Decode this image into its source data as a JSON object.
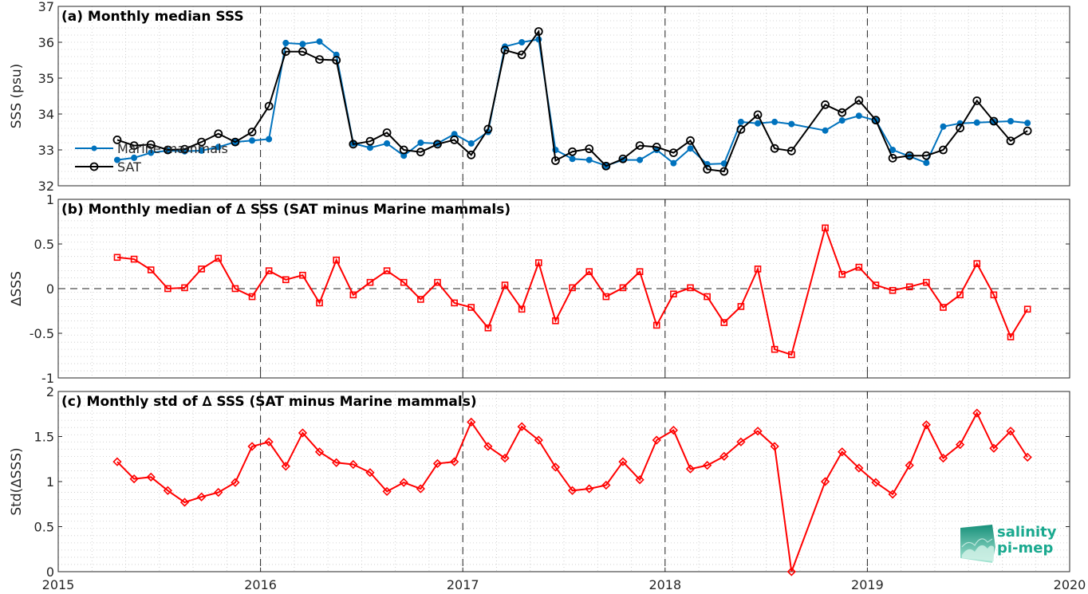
{
  "chart_data": [
    {
      "type": "line",
      "title": "(a) Monthly median SSS",
      "ylabel": "SSS (psu)",
      "ylim": [
        32,
        37
      ],
      "yticks": [
        "32",
        "33",
        "34",
        "35",
        "36",
        "37"
      ],
      "grid": "dotted minor",
      "legend": "left-middle",
      "series": [
        {
          "name": "Marine mammals",
          "color": "#0072bd",
          "marker": "filled-dot",
          "x": [
            "2015-04",
            "2015-05",
            "2015-06",
            "2015-07",
            "2015-08",
            "2015-09",
            "2015-10",
            "2015-11",
            "2015-12",
            "2016-01",
            "2016-02",
            "2016-03",
            "2016-04",
            "2016-05",
            "2016-06",
            "2016-07",
            "2016-08",
            "2016-09",
            "2016-10",
            "2016-11",
            "2016-12",
            "2017-01",
            "2017-02",
            "2017-03",
            "2017-04",
            "2017-05",
            "2017-06",
            "2017-07",
            "2017-08",
            "2017-09",
            "2017-10",
            "2017-11",
            "2017-12",
            "2018-01",
            "2018-02",
            "2018-03",
            "2018-04",
            "2018-05",
            "2018-06",
            "2018-07",
            "2018-08",
            "2018-10",
            "2018-11",
            "2018-12",
            "2019-01",
            "2019-02",
            "2019-03",
            "2019-04",
            "2019-05",
            "2019-06",
            "2019-07",
            "2019-08",
            "2019-09",
            "2019-10"
          ],
          "values": [
            32.72,
            32.78,
            32.92,
            32.98,
            32.96,
            32.98,
            33.08,
            33.22,
            33.26,
            33.3,
            35.98,
            35.95,
            36.02,
            35.65,
            33.18,
            33.06,
            33.18,
            32.84,
            33.2,
            33.18,
            33.44,
            33.18,
            33.5,
            35.88,
            36.0,
            36.08,
            33.0,
            32.75,
            32.72,
            32.56,
            32.72,
            32.72,
            33.0,
            32.63,
            33.04,
            32.6,
            32.62,
            33.78,
            33.74,
            33.78,
            33.72,
            33.54,
            33.82,
            33.95,
            33.82,
            33.0,
            32.82,
            32.64,
            33.65,
            33.74,
            33.76,
            33.78,
            33.8,
            33.75
          ]
        },
        {
          "name": "SAT",
          "color": "#000000",
          "marker": "open-circle",
          "x": [
            "2015-04",
            "2015-05",
            "2015-06",
            "2015-07",
            "2015-08",
            "2015-09",
            "2015-10",
            "2015-11",
            "2015-12",
            "2016-01",
            "2016-02",
            "2016-03",
            "2016-04",
            "2016-05",
            "2016-06",
            "2016-07",
            "2016-08",
            "2016-09",
            "2016-10",
            "2016-11",
            "2016-12",
            "2017-01",
            "2017-02",
            "2017-03",
            "2017-04",
            "2017-05",
            "2017-06",
            "2017-07",
            "2017-08",
            "2017-09",
            "2017-10",
            "2017-11",
            "2017-12",
            "2018-01",
            "2018-02",
            "2018-03",
            "2018-04",
            "2018-05",
            "2018-06",
            "2018-07",
            "2018-08",
            "2018-10",
            "2018-11",
            "2018-12",
            "2019-01",
            "2019-02",
            "2019-03",
            "2019-04",
            "2019-05",
            "2019-06",
            "2019-07",
            "2019-08",
            "2019-09",
            "2019-10"
          ],
          "values": [
            33.28,
            33.12,
            33.15,
            33.0,
            33.02,
            33.22,
            33.45,
            33.22,
            33.5,
            34.22,
            35.74,
            35.74,
            35.52,
            35.5,
            33.16,
            33.24,
            33.48,
            33.0,
            32.94,
            33.16,
            33.28,
            32.86,
            33.58,
            35.78,
            35.65,
            36.3,
            32.7,
            32.95,
            33.03,
            32.55,
            32.75,
            33.12,
            33.08,
            32.92,
            33.26,
            32.46,
            32.4,
            33.57,
            33.98,
            33.04,
            32.97,
            34.26,
            34.04,
            34.38,
            33.83,
            32.77,
            32.84,
            32.84,
            33.0,
            33.61,
            34.37,
            33.8,
            33.25,
            33.53
          ]
        }
      ]
    },
    {
      "type": "line",
      "title": "(b) Monthly median of ∆ SSS (SAT minus Marine mammals)",
      "ylabel": "∆SSS",
      "ylim": [
        -1,
        1
      ],
      "yticks": [
        "-1",
        "-0.5",
        "0",
        "0.5",
        "1"
      ],
      "reference_line": 0,
      "series": [
        {
          "color": "#ff0000",
          "marker": "open-square",
          "x": [
            "2015-04",
            "2015-05",
            "2015-06",
            "2015-07",
            "2015-08",
            "2015-09",
            "2015-10",
            "2015-11",
            "2015-12",
            "2016-01",
            "2016-02",
            "2016-03",
            "2016-04",
            "2016-05",
            "2016-06",
            "2016-07",
            "2016-08",
            "2016-09",
            "2016-10",
            "2016-11",
            "2016-12",
            "2017-01",
            "2017-02",
            "2017-03",
            "2017-04",
            "2017-05",
            "2017-06",
            "2017-07",
            "2017-08",
            "2017-09",
            "2017-10",
            "2017-11",
            "2017-12",
            "2018-01",
            "2018-02",
            "2018-03",
            "2018-04",
            "2018-05",
            "2018-06",
            "2018-07",
            "2018-08",
            "2018-10",
            "2018-11",
            "2018-12",
            "2019-01",
            "2019-02",
            "2019-03",
            "2019-04",
            "2019-05",
            "2019-06",
            "2019-07",
            "2019-08",
            "2019-09",
            "2019-10"
          ],
          "values": [
            0.35,
            0.33,
            0.21,
            0.0,
            0.01,
            0.22,
            0.34,
            0.0,
            -0.09,
            0.2,
            0.1,
            0.15,
            -0.16,
            0.32,
            -0.07,
            0.07,
            0.2,
            0.07,
            -0.12,
            0.07,
            -0.16,
            -0.21,
            -0.44,
            0.04,
            -0.23,
            0.29,
            -0.36,
            0.01,
            0.19,
            -0.09,
            0.01,
            0.19,
            -0.41,
            -0.06,
            0.01,
            -0.09,
            -0.38,
            -0.2,
            0.22,
            -0.68,
            -0.74,
            0.68,
            0.16,
            0.24,
            0.04,
            -0.02,
            0.02,
            0.07,
            -0.21,
            -0.07,
            0.28,
            -0.07,
            -0.54,
            -0.23
          ]
        }
      ]
    },
    {
      "type": "line",
      "title": "(c) Monthly std of ∆ SSS (SAT minus Marine mammals)",
      "ylabel": "Std(∆SSS)",
      "ylim": [
        0,
        2
      ],
      "yticks": [
        "0",
        "0.5",
        "1",
        "1.5",
        "2"
      ],
      "xticks": [
        "2015",
        "2016",
        "2017",
        "2018",
        "2019",
        "2020"
      ],
      "series": [
        {
          "color": "#ff0000",
          "marker": "open-diamond",
          "x": [
            "2015-04",
            "2015-05",
            "2015-06",
            "2015-07",
            "2015-08",
            "2015-09",
            "2015-10",
            "2015-11",
            "2015-12",
            "2016-01",
            "2016-02",
            "2016-03",
            "2016-04",
            "2016-05",
            "2016-06",
            "2016-07",
            "2016-08",
            "2016-09",
            "2016-10",
            "2016-11",
            "2016-12",
            "2017-01",
            "2017-02",
            "2017-03",
            "2017-04",
            "2017-05",
            "2017-06",
            "2017-07",
            "2017-08",
            "2017-09",
            "2017-10",
            "2017-11",
            "2017-12",
            "2018-01",
            "2018-02",
            "2018-03",
            "2018-04",
            "2018-05",
            "2018-06",
            "2018-07",
            "2018-08",
            "2018-10",
            "2018-11",
            "2018-12",
            "2019-01",
            "2019-02",
            "2019-03",
            "2019-04",
            "2019-05",
            "2019-06",
            "2019-07",
            "2019-08",
            "2019-09",
            "2019-10"
          ],
          "values": [
            1.22,
            1.03,
            1.05,
            0.9,
            0.77,
            0.83,
            0.88,
            0.99,
            1.39,
            1.44,
            1.17,
            1.54,
            1.33,
            1.21,
            1.19,
            1.1,
            0.89,
            0.99,
            0.92,
            1.2,
            1.22,
            1.66,
            1.39,
            1.26,
            1.61,
            1.46,
            1.16,
            0.9,
            0.92,
            0.96,
            1.22,
            1.02,
            1.46,
            1.57,
            1.14,
            1.18,
            1.28,
            1.44,
            1.56,
            1.39,
            0.0,
            1.0,
            1.33,
            1.15,
            0.99,
            0.86,
            1.18,
            1.63,
            1.26,
            1.41,
            1.76,
            1.37,
            1.56,
            1.27
          ]
        }
      ]
    }
  ],
  "logo": {
    "line1": "salinity",
    "line2": "pi-mep",
    "color": "#1aa98f"
  }
}
